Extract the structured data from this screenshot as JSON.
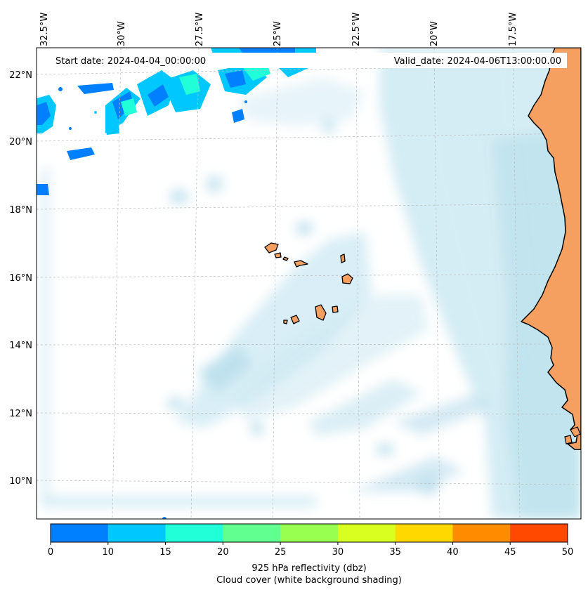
{
  "header": {
    "start_date": "Start date: 2024-04-04_00:00:00",
    "valid_date": "Valid_date: 2024-04-06T13:00:00.00"
  },
  "axes": {
    "lon_labels": [
      "32.5°W",
      "30°W",
      "27.5°W",
      "25°W",
      "22.5°W",
      "20°W",
      "17.5°W"
    ],
    "lat_labels": [
      "22°N",
      "20°N",
      "18°N",
      "16°N",
      "14°N",
      "12°N",
      "10°N"
    ]
  },
  "colorbar": {
    "ticks": [
      "0",
      "10",
      "15",
      "20",
      "25",
      "30",
      "35",
      "40",
      "45",
      "50"
    ],
    "colors": [
      "#0080ff",
      "#00c8ff",
      "#20ffd8",
      "#60ff90",
      "#98ff50",
      "#d8ff20",
      "#ffd800",
      "#ff8c00",
      "#ff4800"
    ],
    "label_line1": "925 hPa reflectivity (dbz)",
    "label_line2": "Cloud cover (white background shading)"
  },
  "colors": {
    "land": "#f5a060",
    "cloud": "#a8d8e8",
    "reflectivity_low": "#0080ff",
    "reflectivity_mid": "#00c8ff",
    "reflectivity_high": "#20ffd8"
  }
}
